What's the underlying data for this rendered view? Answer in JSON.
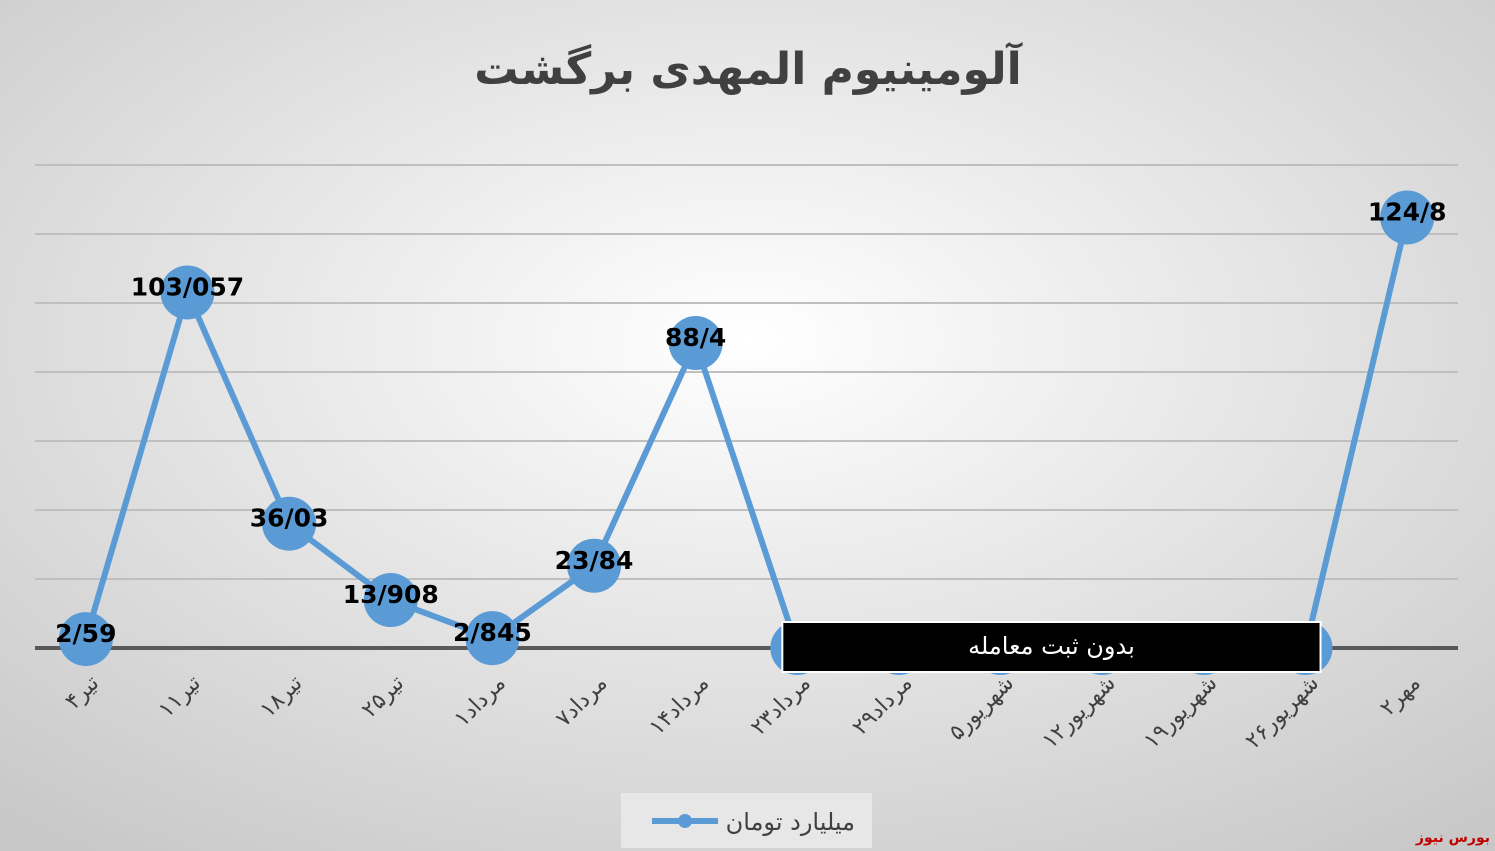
{
  "chart_data": {
    "type": "line",
    "title": "آلومینیوم المهدی برگشت",
    "categories": [
      "۴تیر",
      "۱۱تیر",
      "۱۸تیر",
      "۲۵تیر",
      "۱مرداد",
      "۷مرداد",
      "۱۴مرداد",
      "۲۳مرداد",
      "۲۹مرداد",
      "۵شهریور",
      "۱۲شهریور",
      "۱۹شهریور",
      "۲۶شهریور",
      "۲مهر"
    ],
    "series": [
      {
        "name": "میلیارد تومان",
        "color": "#5b9bd5",
        "values": [
          2.59,
          103.057,
          36.03,
          13.908,
          2.845,
          23.84,
          88.4,
          0,
          0,
          0,
          0,
          0,
          0,
          124.8
        ],
        "value_labels": [
          "2/59",
          "103/057",
          "36/03",
          "13/908",
          "2/845",
          "23/84",
          "88/4",
          null,
          null,
          null,
          null,
          null,
          null,
          "124/8"
        ]
      }
    ],
    "ylim": [
      0,
      140
    ],
    "yticks": [
      0,
      20,
      40,
      60,
      80,
      100,
      120,
      140
    ],
    "grid": true,
    "annotation": "بدون ثبت معامله",
    "source": "بورس نیوز"
  }
}
